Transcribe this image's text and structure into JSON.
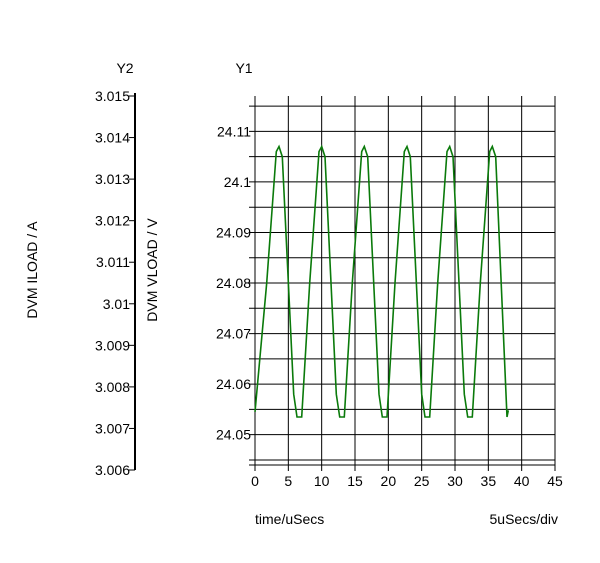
{
  "chart_data": {
    "type": "line",
    "x_axis": {
      "label": "time/uSecs",
      "scale_label": "5uSecs/div",
      "range": [
        0,
        45
      ],
      "ticks": [
        "0",
        "5",
        "10",
        "15",
        "20",
        "25",
        "30",
        "35",
        "40",
        "45"
      ]
    },
    "y1_axis": {
      "title": "Y1",
      "label": "DVM VLOAD / V",
      "range": [
        24.044,
        24.117
      ],
      "ticks": [
        "24.05",
        "24.06",
        "24.07",
        "24.08",
        "24.09",
        "24.1",
        "24.11"
      ],
      "tick_values": [
        24.05,
        24.06,
        24.07,
        24.08,
        24.09,
        24.1,
        24.11
      ]
    },
    "y2_axis": {
      "title": "Y2",
      "label": "DVM ILOAD / A",
      "range": [
        3.006,
        3.015
      ],
      "ticks": [
        "3.006",
        "3.007",
        "3.008",
        "3.009",
        "3.01",
        "3.011",
        "3.012",
        "3.013",
        "3.014",
        "3.015"
      ]
    },
    "grid": true,
    "series": [
      {
        "axis": "y1",
        "color": "#0a7a0a",
        "x": [
          0,
          1.75,
          3.2,
          3.6,
          4.1,
          5.8,
          6.3,
          7.0,
          8.2,
          9.6,
          10.0,
          10.5,
          12.2,
          12.7,
          13.4,
          14.6,
          16.0,
          16.4,
          16.9,
          18.6,
          19.1,
          19.8,
          21.0,
          22.4,
          22.8,
          23.3,
          25.0,
          25.5,
          26.2,
          27.4,
          28.8,
          29.2,
          29.7,
          31.4,
          31.9,
          32.6,
          33.8,
          35.2,
          35.6,
          36.1,
          37.8,
          38.0
        ],
        "y": [
          24.0545,
          24.08,
          24.106,
          24.107,
          24.105,
          24.058,
          24.0535,
          24.0535,
          24.08,
          24.106,
          24.107,
          24.105,
          24.058,
          24.0535,
          24.0535,
          24.08,
          24.106,
          24.107,
          24.105,
          24.058,
          24.0535,
          24.0535,
          24.08,
          24.106,
          24.107,
          24.105,
          24.058,
          24.0535,
          24.0535,
          24.08,
          24.106,
          24.107,
          24.105,
          24.058,
          24.0535,
          24.0535,
          24.08,
          24.106,
          24.107,
          24.105,
          24.0535,
          24.0548
        ]
      }
    ]
  }
}
